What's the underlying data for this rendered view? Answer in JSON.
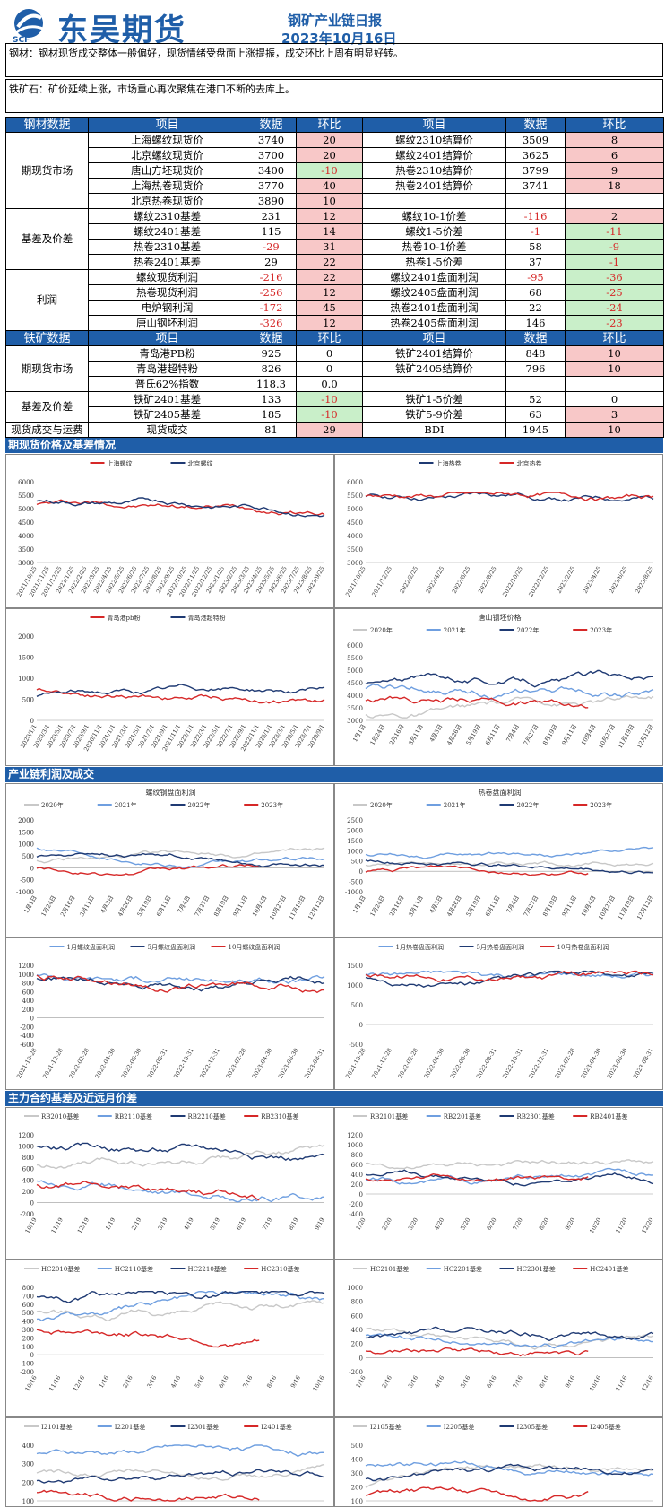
{
  "header": {
    "logo_text": "东吴期货",
    "logo_abbr": "SCF",
    "title": "钢矿产业链日报",
    "date": "2023年10月16日"
  },
  "summary": {
    "steel": "钢材：钢材现货成交整体一般偏好，现货情绪受盘面上涨提振，成交环比上周有明显好转。",
    "ore": "铁矿石：矿价延续上涨，市场重心再次聚焦在港口不断的去库上。"
  },
  "table_headers": {
    "steel": "钢材数据",
    "ore": "铁矿数据",
    "item": "项目",
    "data": "数据",
    "chg": "环比"
  },
  "groups": {
    "spot": "期现货市场",
    "basis": "基差及价差",
    "profit": "利润",
    "trade": "现货成交与运费"
  },
  "steel_rows": [
    [
      "上海螺纹现货价",
      "3740",
      "20",
      "螺纹2310结算价",
      "3509",
      "8"
    ],
    [
      "北京螺纹现货价",
      "3700",
      "20",
      "螺纹2401结算价",
      "3625",
      "6"
    ],
    [
      "唐山方坯现货价",
      "3400",
      "-10",
      "热卷2310结算价",
      "3799",
      "9"
    ],
    [
      "上海热卷现货价",
      "3770",
      "40",
      "热卷2401结算价",
      "3741",
      "18"
    ],
    [
      "北京热卷现货价",
      "3890",
      "10",
      "",
      "",
      ""
    ],
    [
      "螺纹2310基差",
      "231",
      "12",
      "螺纹10-1价差",
      "-116",
      "2"
    ],
    [
      "螺纹2401基差",
      "115",
      "14",
      "螺纹1-5价差",
      "-1",
      "-11"
    ],
    [
      "热卷2310基差",
      "-29",
      "31",
      "热卷10-1价差",
      "58",
      "-9"
    ],
    [
      "热卷2401基差",
      "29",
      "22",
      "热卷1-5价差",
      "37",
      "-1"
    ],
    [
      "螺纹现货利润",
      "-216",
      "22",
      "螺纹2401盘面利润",
      "-95",
      "-36"
    ],
    [
      "热卷现货利润",
      "-256",
      "12",
      "螺纹2405盘面利润",
      "68",
      "-25"
    ],
    [
      "电炉钢利润",
      "-172",
      "45",
      "热卷2401盘面利润",
      "22",
      "-24"
    ],
    [
      "唐山钢坯利润",
      "-326",
      "12",
      "热卷2405盘面利润",
      "146",
      "-23"
    ]
  ],
  "ore_rows": [
    [
      "青岛港PB粉",
      "925",
      "0",
      "铁矿2401结算价",
      "848",
      "10"
    ],
    [
      "青岛港超特粉",
      "826",
      "0",
      "铁矿2405结算价",
      "796",
      "10"
    ],
    [
      "普氏62%指数",
      "118.3",
      "0.0",
      "",
      "",
      ""
    ],
    [
      "铁矿2401基差",
      "133",
      "-10",
      "铁矿1-5价差",
      "52",
      "0"
    ],
    [
      "铁矿2405基差",
      "185",
      "-10",
      "铁矿5-9价差",
      "63",
      "3"
    ],
    [
      "现货成交",
      "81",
      "29",
      "BDI",
      "1945",
      "10"
    ]
  ],
  "sections": {
    "s1": "期现货价格及基差情况",
    "s2": "产业链利润及成交",
    "s3": "主力合约基差及近远月价差"
  },
  "charts": {
    "c1": {
      "title": "",
      "legend": [
        "上海螺纹",
        "北京螺纹"
      ],
      "yticks": [
        "6000",
        "5500",
        "5000",
        "4500",
        "4000",
        "3500",
        "3000"
      ],
      "xticks": [
        "2021/10/25",
        "2021/11/25",
        "2021/12/25",
        "2022/1/25",
        "2022/2/25",
        "2022/3/25",
        "2022/4/25",
        "2022/5/25",
        "2022/6/25",
        "2022/7/25",
        "2022/8/25",
        "2022/9/25",
        "2022/10/25",
        "2022/11/25",
        "2022/12/25",
        "2023/1/25",
        "2023/2/25",
        "2023/3/25",
        "2023/4/25",
        "2023/5/25",
        "2023/6/25",
        "2023/7/25",
        "2023/8/25",
        "2023/9/25"
      ]
    },
    "c2": {
      "title": "",
      "legend": [
        "上海热卷",
        "北京热卷"
      ],
      "yticks": [
        "6000",
        "5500",
        "5000",
        "4500",
        "4000",
        "3500",
        "3000"
      ],
      "xticks": [
        "2021/10/25",
        "2021/12/25",
        "2022/2/25",
        "2022/4/25",
        "2022/6/25",
        "2022/8/25",
        "2022/10/25",
        "2022/12/25",
        "2023/2/25",
        "2023/4/25",
        "2023/6/25",
        "2023/8/25"
      ]
    },
    "c3": {
      "title": "",
      "legend": [
        "青岛港pb粉",
        "青岛港超特粉"
      ],
      "yticks": [
        "2000",
        "1500",
        "1000",
        "500",
        "0"
      ],
      "xticks": [
        "2020/1/1",
        "2020/3/1",
        "2020/5/1",
        "2020/7/1",
        "2020/9/1",
        "2020/11/1",
        "2021/1/1",
        "2021/3/1",
        "2021/5/1",
        "2021/7/1",
        "2021/9/1",
        "2021/11/1",
        "2022/1/1",
        "2022/3/1",
        "2022/5/1",
        "2022/7/1",
        "2022/9/1",
        "2022/11/1",
        "2023/1/1",
        "2023/3/1",
        "2023/5/1",
        "2023/7/1",
        "2023/9/1"
      ]
    },
    "c4": {
      "title": "唐山钢坯价格",
      "legend": [
        "2020年",
        "2021年",
        "2022年",
        "2023年"
      ],
      "yticks": [
        "6000",
        "5500",
        "5000",
        "4500",
        "4000",
        "3500",
        "3000"
      ],
      "xticks": [
        "1月1日",
        "1月24日",
        "2月16日",
        "3月11日",
        "4月3日",
        "4月26日",
        "5月19日",
        "6月11日",
        "7月4日",
        "7月27日",
        "8月19日",
        "9月11日",
        "10月4日",
        "10月27日",
        "11月19日",
        "12月12日"
      ]
    },
    "c5": {
      "title": "螺纹钢盘面利润",
      "legend": [
        "2020年",
        "2021年",
        "2022年",
        "2023年"
      ],
      "yticks": [
        "2000",
        "1500",
        "1000",
        "500",
        "0",
        "-500",
        "-1000"
      ],
      "xticks": [
        "1月1日",
        "1月24日",
        "2月16日",
        "3月11日",
        "4月3日",
        "4月26日",
        "5月19日",
        "6月11日",
        "7月4日",
        "7月27日",
        "8月19日",
        "9月11日",
        "10月4日",
        "10月27日",
        "11月19日",
        "12月12日"
      ]
    },
    "c6": {
      "title": "热卷盘面利润",
      "legend": [
        "2020年",
        "2021年",
        "2022年",
        "2023年"
      ],
      "yticks": [
        "2500",
        "2000",
        "1500",
        "1000",
        "500",
        "0",
        "-500",
        "-1000"
      ],
      "xticks": [
        "1月1日",
        "1月24日",
        "2月16日",
        "3月11日",
        "4月3日",
        "4月26日",
        "5月19日",
        "6月11日",
        "7月4日",
        "7月27日",
        "8月19日",
        "9月11日",
        "10月4日",
        "10月27日",
        "11月19日",
        "12月12日"
      ]
    },
    "c7": {
      "title": "",
      "legend": [
        "1月螺纹盘面利润",
        "5月螺纹盘面利润",
        "10月螺纹盘面利润"
      ],
      "yticks": [
        "1200",
        "1000",
        "800",
        "600",
        "400",
        "200",
        "0",
        "-200",
        "-400",
        "-600"
      ],
      "xticks": [
        "2021-10-28",
        "2021-12-28",
        "2022-02-28",
        "2022-04-30",
        "2022-06-30",
        "2022-08-31",
        "2022-10-31",
        "2022-12-31",
        "2023-02-28",
        "2023-04-30",
        "2023-06-30",
        "2023-08-31"
      ]
    },
    "c8": {
      "title": "",
      "legend": [
        "1月热卷盘面利润",
        "5月热卷盘面利润",
        "10月热卷盘面利润"
      ],
      "yticks": [
        "1500",
        "1000",
        "500",
        "0",
        "-500"
      ],
      "xticks": [
        "2021-10-28",
        "2021-12-28",
        "2022-02-28",
        "2022-04-30",
        "2022-06-30",
        "2022-08-31",
        "2022-10-31",
        "2022-12-31",
        "2023-02-28",
        "2023-04-30",
        "2023-06-30",
        "2023-08-31"
      ]
    },
    "c9": {
      "title": "",
      "legend": [
        "RB2010基差",
        "RB2110基差",
        "RB2210基差",
        "RB2310基差"
      ],
      "yticks": [
        "1200",
        "1000",
        "800",
        "600",
        "400",
        "200",
        "0",
        "-200"
      ],
      "xticks": [
        "10/19",
        "11/19",
        "12/19",
        "1/19",
        "2/19",
        "3/19",
        "4/19",
        "5/19",
        "6/19",
        "7/19",
        "8/19",
        "9/19"
      ]
    },
    "c10": {
      "title": "",
      "legend": [
        "RB2101基差",
        "RB2201基差",
        "RB2301基差",
        "RB2401基差"
      ],
      "yticks": [
        "1200",
        "1000",
        "800",
        "600",
        "400",
        "200",
        "0",
        "-200",
        "-400"
      ],
      "xticks": [
        "1/20",
        "2/20",
        "3/20",
        "4/20",
        "5/20",
        "6/20",
        "7/20",
        "8/20",
        "9/20",
        "10/20",
        "11/20",
        "12/20"
      ]
    },
    "c11": {
      "title": "",
      "legend": [
        "HC2010基差",
        "HC2110基差",
        "HC2210基差",
        "HC2310基差"
      ],
      "yticks": [
        "800",
        "700",
        "600",
        "500",
        "400",
        "300",
        "200",
        "100",
        "0",
        "-100",
        "-200"
      ],
      "xticks": [
        "10/16",
        "11/16",
        "12/16",
        "1/16",
        "2/16",
        "3/16",
        "4/16",
        "5/16",
        "6/16",
        "7/16",
        "8/16",
        "9/16",
        "10/16"
      ]
    },
    "c12": {
      "title": "",
      "legend": [
        "HC2101基差",
        "HC2201基差",
        "HC2301基差",
        "HC2401基差"
      ],
      "yticks": [
        "1000",
        "800",
        "600",
        "400",
        "200",
        "0",
        "-200"
      ],
      "xticks": [
        "1/16",
        "2/16",
        "3/16",
        "4/16",
        "5/16",
        "6/16",
        "7/16",
        "8/16",
        "9/16",
        "10/16",
        "11/16",
        "12/16"
      ]
    },
    "c13": {
      "title": "",
      "legend": [
        "I2101基差",
        "I2201基差",
        "I2301基差",
        "I2401基差"
      ],
      "yticks": [
        "400",
        "300",
        "200",
        "100"
      ],
      "xticks": []
    },
    "c14": {
      "title": "",
      "legend": [
        "I2105基差",
        "I2205基差",
        "I2305基差",
        "I2405基差"
      ],
      "yticks": [
        "500",
        "400",
        "300",
        "200",
        "100"
      ],
      "xticks": []
    }
  },
  "colors": {
    "brand": "#1f5ea8",
    "red": "#d62828",
    "up_bg": "#f8c8c8",
    "down_bg": "#c9efc9",
    "navy": "#1f3a73",
    "light_blue": "#6f9fe0",
    "gray": "#c8c8c8"
  }
}
